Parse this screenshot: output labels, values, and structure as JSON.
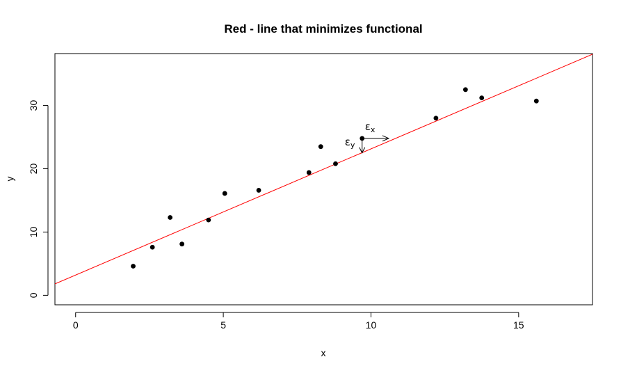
{
  "chart_data": {
    "type": "scatter",
    "title": "Red - line that minimizes functional",
    "xlabel": "x",
    "ylabel": "y",
    "xlim": [
      -0.7,
      17.5
    ],
    "ylim": [
      -1.5,
      38.2
    ],
    "x_ticks": [
      0,
      5,
      10,
      15
    ],
    "y_ticks": [
      0,
      10,
      20,
      30
    ],
    "x_tick_labels": [
      "0",
      "5",
      "10",
      "15"
    ],
    "y_tick_labels": [
      "0",
      "10",
      "20",
      "30"
    ],
    "grid": false,
    "points": [
      {
        "x": 1.95,
        "y": 4.6
      },
      {
        "x": 2.6,
        "y": 7.6
      },
      {
        "x": 3.2,
        "y": 12.3
      },
      {
        "x": 3.6,
        "y": 8.1
      },
      {
        "x": 4.5,
        "y": 11.9
      },
      {
        "x": 5.05,
        "y": 16.1
      },
      {
        "x": 6.2,
        "y": 16.6
      },
      {
        "x": 7.9,
        "y": 19.4
      },
      {
        "x": 8.3,
        "y": 23.5
      },
      {
        "x": 8.8,
        "y": 20.8
      },
      {
        "x": 9.7,
        "y": 24.8
      },
      {
        "x": 12.2,
        "y": 28.0
      },
      {
        "x": 13.2,
        "y": 32.5
      },
      {
        "x": 13.75,
        "y": 31.2
      },
      {
        "x": 15.6,
        "y": 30.7
      }
    ],
    "fit_line": {
      "intercept": 3.2,
      "slope": 1.994,
      "color": "#ff0000"
    },
    "point_color": "#000000",
    "annotations": {
      "epsilon_x": {
        "symbol": "ε",
        "subscript": "x"
      },
      "epsilon_y": {
        "symbol": "ε",
        "subscript": "y"
      },
      "anchor_point": {
        "x": 9.7,
        "y": 24.8
      },
      "x_arrow_to": 10.6,
      "y_arrow_to": 22.5
    }
  }
}
